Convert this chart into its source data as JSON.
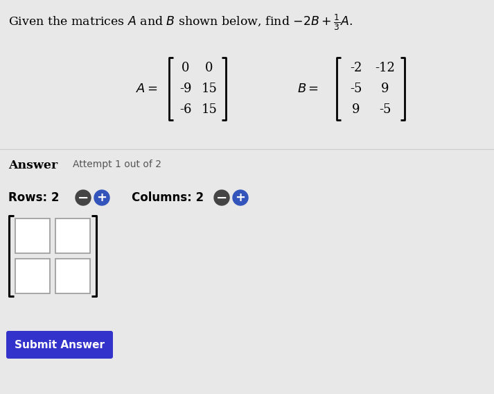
{
  "title_text": "Given the matrices $A$ and $B$ shown below, find $-2B + \\frac{1}{3}A$.",
  "A_matrix": [
    [
      0,
      0
    ],
    [
      -9,
      15
    ],
    [
      -6,
      15
    ]
  ],
  "B_matrix": [
    [
      -2,
      -12
    ],
    [
      -5,
      9
    ],
    [
      9,
      -5
    ]
  ],
  "answer_label": "Answer",
  "attempt_text": "Attempt 1 out of 2",
  "rows_label": "Rows: 2",
  "cols_label": "Columns: 2",
  "submit_text": "Submit Answer",
  "bg_color": "#e8e8e8",
  "button_color": "#3333cc",
  "button_text_color": "#ffffff",
  "box_color": "#ffffff",
  "box_border_color": "#999999",
  "minus_color": "#444444",
  "plus_color": "#3355bb"
}
